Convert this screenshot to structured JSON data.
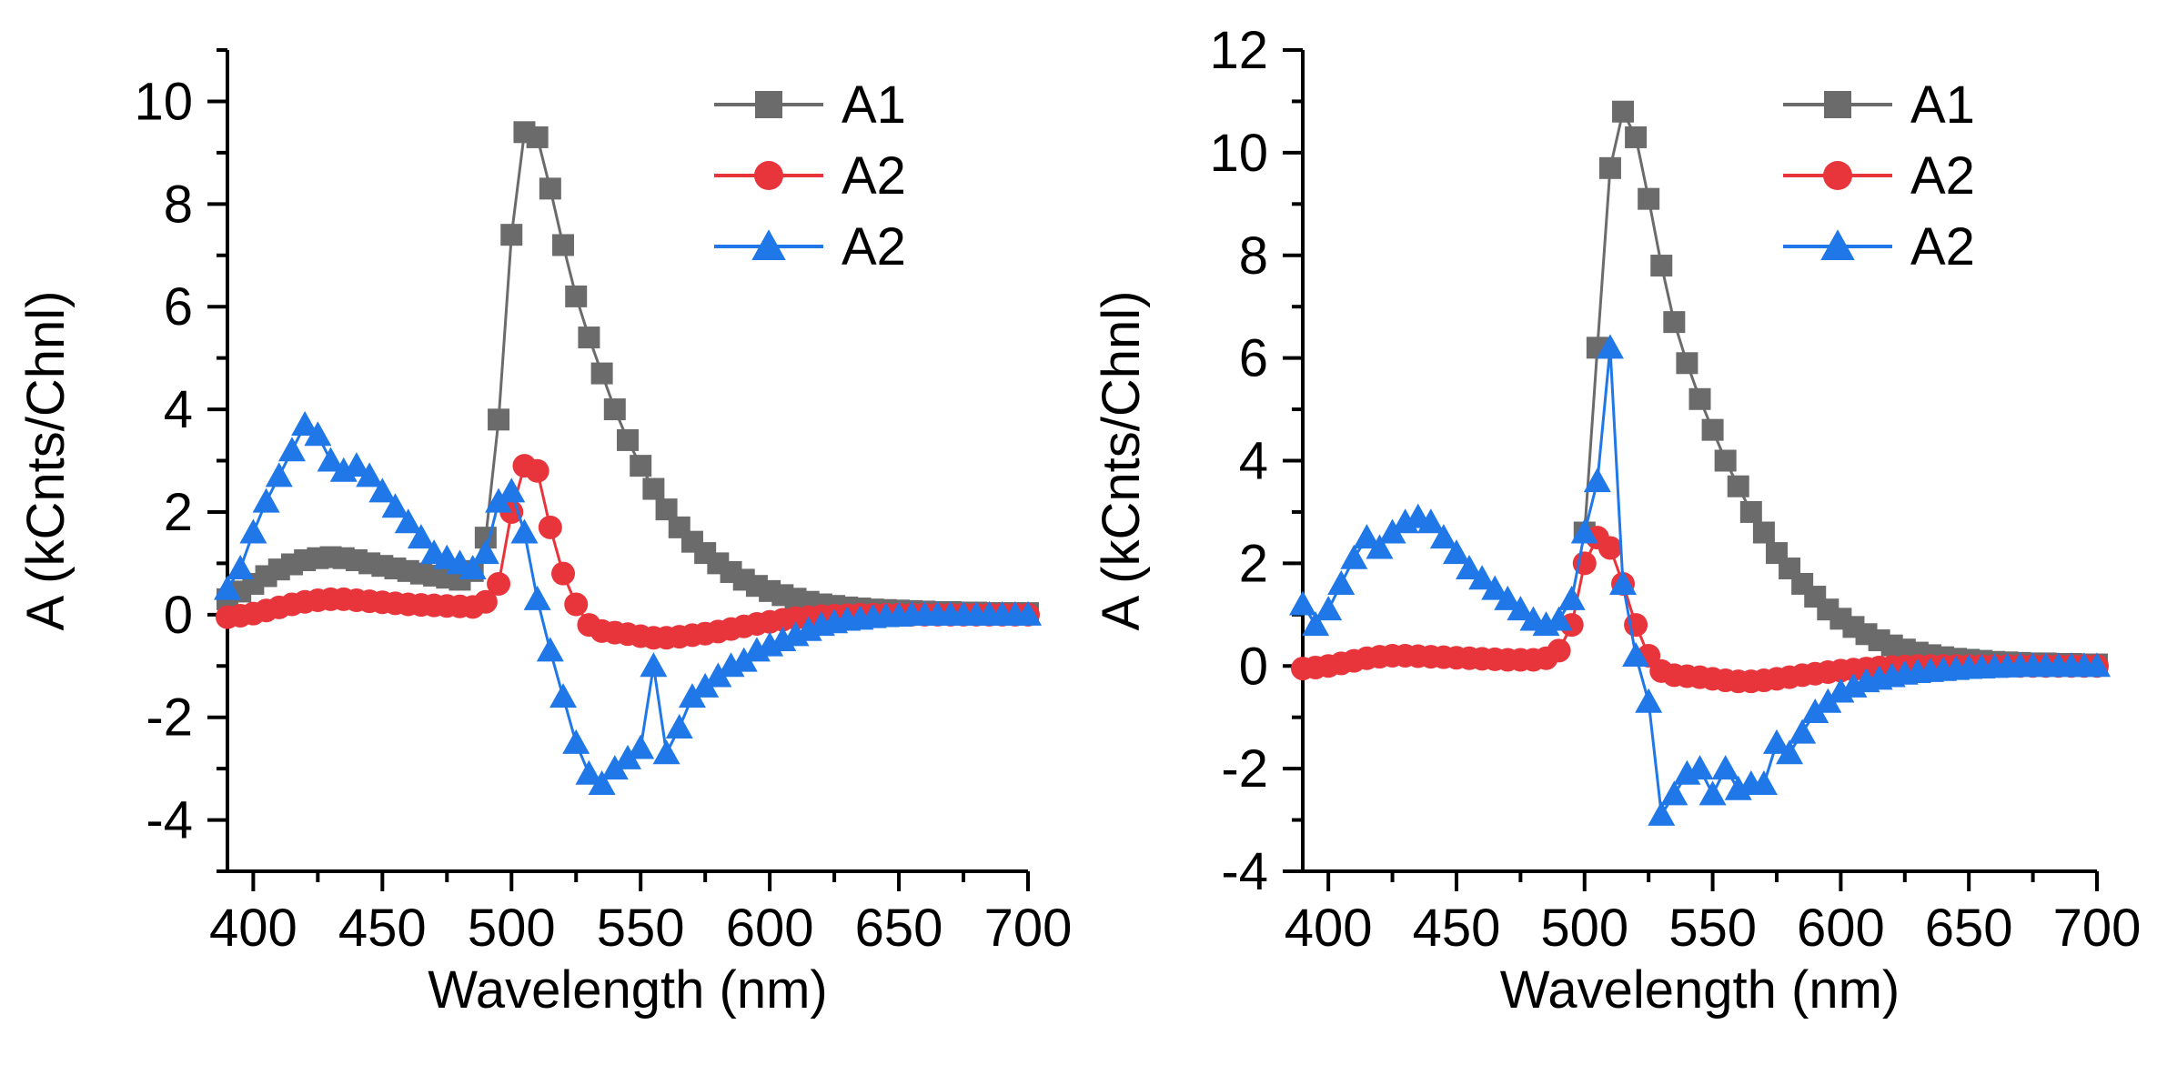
{
  "colors": {
    "A1": "#6b6b6b",
    "A2_red": "#e8343b",
    "A2_blue": "#1f77e8",
    "axis": "#000000"
  },
  "chart_data": [
    {
      "type": "line",
      "title": "",
      "xlabel": "Wavelength (nm)",
      "ylabel": "A (kCnts/Chnl)",
      "xlim": [
        390,
        700
      ],
      "ylim": [
        -5,
        11
      ],
      "xticks": [
        400,
        450,
        500,
        550,
        600,
        650,
        700
      ],
      "xtick_labels": [
        "400",
        "450",
        "500",
        "550",
        "600",
        "650",
        "700"
      ],
      "yticks": [
        -4,
        -2,
        0,
        2,
        4,
        6,
        8,
        10
      ],
      "ytick_labels": [
        "-4",
        "-2",
        "0",
        "2",
        "4",
        "6",
        "8",
        "10"
      ],
      "legend": "top-right",
      "series": [
        {
          "name": "A1",
          "marker": "square",
          "color": "#6b6b6b",
          "x": [
            390,
            395,
            400,
            405,
            410,
            415,
            420,
            425,
            430,
            435,
            440,
            445,
            450,
            455,
            460,
            465,
            470,
            475,
            480,
            485,
            490,
            495,
            500,
            505,
            510,
            515,
            520,
            525,
            530,
            535,
            540,
            545,
            550,
            555,
            560,
            565,
            570,
            575,
            580,
            585,
            590,
            595,
            600,
            605,
            610,
            615,
            620,
            625,
            630,
            635,
            640,
            645,
            650,
            655,
            660,
            665,
            670,
            675,
            680,
            685,
            690,
            695,
            700
          ],
          "y": [
            0.3,
            0.45,
            0.6,
            0.75,
            0.88,
            0.98,
            1.06,
            1.1,
            1.12,
            1.1,
            1.06,
            1.0,
            0.95,
            0.9,
            0.85,
            0.8,
            0.76,
            0.72,
            0.68,
            0.85,
            1.5,
            3.8,
            7.4,
            9.4,
            9.3,
            8.3,
            7.2,
            6.2,
            5.4,
            4.7,
            4.0,
            3.4,
            2.9,
            2.45,
            2.05,
            1.7,
            1.42,
            1.2,
            1.0,
            0.83,
            0.68,
            0.56,
            0.46,
            0.38,
            0.31,
            0.25,
            0.2,
            0.17,
            0.14,
            0.12,
            0.1,
            0.09,
            0.08,
            0.07,
            0.06,
            0.05,
            0.05,
            0.04,
            0.04,
            0.03,
            0.03,
            0.03,
            0.03
          ]
        },
        {
          "name": "A2",
          "marker": "circle",
          "color": "#e8343b",
          "x": [
            390,
            395,
            400,
            405,
            410,
            415,
            420,
            425,
            430,
            435,
            440,
            445,
            450,
            455,
            460,
            465,
            470,
            475,
            480,
            485,
            490,
            495,
            500,
            505,
            510,
            515,
            520,
            525,
            530,
            535,
            540,
            545,
            550,
            555,
            560,
            565,
            570,
            575,
            580,
            585,
            590,
            595,
            600,
            605,
            610,
            615,
            620,
            625,
            630,
            635,
            640,
            645,
            650,
            655,
            660,
            665,
            670,
            675,
            680,
            685,
            690,
            695,
            700
          ],
          "y": [
            -0.05,
            -0.02,
            0.02,
            0.08,
            0.14,
            0.2,
            0.25,
            0.28,
            0.3,
            0.3,
            0.28,
            0.26,
            0.24,
            0.22,
            0.2,
            0.19,
            0.18,
            0.17,
            0.16,
            0.15,
            0.25,
            0.6,
            2.0,
            2.9,
            2.8,
            1.7,
            0.8,
            0.2,
            -0.2,
            -0.32,
            -0.35,
            -0.38,
            -0.42,
            -0.45,
            -0.45,
            -0.43,
            -0.4,
            -0.37,
            -0.33,
            -0.28,
            -0.23,
            -0.18,
            -0.14,
            -0.1,
            -0.07,
            -0.05,
            -0.03,
            -0.02,
            -0.01,
            0.0,
            0.0,
            0.0,
            0.0,
            0.0,
            0.0,
            0.0,
            0.0,
            0.0,
            0.0,
            0.0,
            0.0,
            0.0,
            0.0
          ]
        },
        {
          "name": "A2",
          "marker": "triangle",
          "color": "#1f77e8",
          "x": [
            390,
            395,
            400,
            405,
            410,
            415,
            420,
            425,
            430,
            435,
            440,
            445,
            450,
            455,
            460,
            465,
            470,
            475,
            480,
            485,
            490,
            495,
            500,
            505,
            510,
            515,
            520,
            525,
            530,
            535,
            540,
            545,
            550,
            555,
            560,
            565,
            570,
            575,
            580,
            585,
            590,
            595,
            600,
            605,
            610,
            615,
            620,
            625,
            630,
            635,
            640,
            645,
            650,
            655,
            660,
            665,
            670,
            675,
            680,
            685,
            690,
            695,
            700
          ],
          "y": [
            0.5,
            0.9,
            1.6,
            2.2,
            2.7,
            3.2,
            3.7,
            3.5,
            3.0,
            2.8,
            2.9,
            2.7,
            2.4,
            2.1,
            1.8,
            1.5,
            1.2,
            1.1,
            1.0,
            0.9,
            1.2,
            2.2,
            2.4,
            1.6,
            0.3,
            -0.7,
            -1.6,
            -2.5,
            -3.1,
            -3.3,
            -3.0,
            -2.8,
            -2.6,
            -1.0,
            -2.7,
            -2.2,
            -1.6,
            -1.4,
            -1.2,
            -1.0,
            -0.9,
            -0.7,
            -0.6,
            -0.5,
            -0.4,
            -0.3,
            -0.2,
            -0.15,
            -0.1,
            -0.08,
            -0.05,
            -0.03,
            -0.02,
            0.0,
            0.0,
            0.0,
            0.0,
            0.0,
            0.0,
            0.0,
            0.0,
            0.0,
            0.0
          ]
        }
      ]
    },
    {
      "type": "line",
      "title": "",
      "xlabel": "Wavelength (nm)",
      "ylabel": "A (kCnts/Chnl)",
      "xlim": [
        390,
        700
      ],
      "ylim": [
        -4,
        12
      ],
      "xticks": [
        400,
        450,
        500,
        550,
        600,
        650,
        700
      ],
      "xtick_labels": [
        "400",
        "450",
        "500",
        "550",
        "600",
        "650",
        "700"
      ],
      "yticks": [
        -4,
        -2,
        0,
        2,
        4,
        6,
        8,
        10,
        12
      ],
      "ytick_labels": [
        "-4",
        "-2",
        "0",
        "2",
        "4",
        "6",
        "8",
        "10",
        "12"
      ],
      "legend": "top-right",
      "series": [
        {
          "name": "A1",
          "marker": "square",
          "color": "#6b6b6b",
          "x": [
            500,
            505,
            510,
            515,
            520,
            525,
            530,
            535,
            540,
            545,
            550,
            555,
            560,
            565,
            570,
            575,
            580,
            585,
            590,
            595,
            600,
            605,
            610,
            615,
            620,
            625,
            630,
            635,
            640,
            645,
            650,
            655,
            660,
            665,
            670,
            675,
            680,
            685,
            690,
            695,
            700
          ],
          "y": [
            2.6,
            6.2,
            9.7,
            10.8,
            10.3,
            9.1,
            7.8,
            6.7,
            5.9,
            5.2,
            4.6,
            4.0,
            3.5,
            3.0,
            2.6,
            2.2,
            1.9,
            1.6,
            1.35,
            1.1,
            0.92,
            0.76,
            0.62,
            0.5,
            0.4,
            0.32,
            0.26,
            0.21,
            0.17,
            0.14,
            0.12,
            0.1,
            0.08,
            0.07,
            0.06,
            0.05,
            0.05,
            0.04,
            0.04,
            0.03,
            0.03
          ]
        },
        {
          "name": "A2",
          "marker": "circle",
          "color": "#e8343b",
          "x": [
            390,
            395,
            400,
            405,
            410,
            415,
            420,
            425,
            430,
            435,
            440,
            445,
            450,
            455,
            460,
            465,
            470,
            475,
            480,
            485,
            490,
            495,
            500,
            505,
            510,
            515,
            520,
            525,
            530,
            535,
            540,
            545,
            550,
            555,
            560,
            565,
            570,
            575,
            580,
            585,
            590,
            595,
            600,
            605,
            610,
            615,
            620,
            625,
            630,
            635,
            640,
            645,
            650,
            655,
            660,
            665,
            670,
            675,
            680,
            685,
            690,
            695,
            700
          ],
          "y": [
            -0.05,
            -0.03,
            0.0,
            0.05,
            0.1,
            0.15,
            0.18,
            0.2,
            0.2,
            0.19,
            0.18,
            0.17,
            0.16,
            0.15,
            0.14,
            0.13,
            0.12,
            0.12,
            0.12,
            0.15,
            0.3,
            0.8,
            2.0,
            2.5,
            2.3,
            1.6,
            0.8,
            0.2,
            -0.1,
            -0.18,
            -0.2,
            -0.22,
            -0.25,
            -0.28,
            -0.3,
            -0.3,
            -0.28,
            -0.25,
            -0.22,
            -0.18,
            -0.15,
            -0.12,
            -0.09,
            -0.07,
            -0.05,
            -0.03,
            -0.02,
            -0.01,
            0.0,
            0.0,
            0.0,
            0.0,
            0.0,
            0.0,
            0.0,
            0.0,
            0.0,
            0.0,
            0.0,
            0.0,
            0.0,
            0.0,
            0.0
          ]
        },
        {
          "name": "A2",
          "marker": "triangle",
          "color": "#1f77e8",
          "x": [
            390,
            395,
            400,
            405,
            410,
            415,
            420,
            425,
            430,
            435,
            440,
            445,
            450,
            455,
            460,
            465,
            470,
            475,
            480,
            485,
            490,
            495,
            500,
            505,
            510,
            515,
            520,
            525,
            530,
            535,
            540,
            545,
            550,
            555,
            560,
            565,
            570,
            575,
            580,
            585,
            590,
            595,
            600,
            605,
            610,
            615,
            620,
            625,
            630,
            635,
            640,
            645,
            650,
            655,
            660,
            665,
            670,
            675,
            680,
            685,
            690,
            695,
            700
          ],
          "y": [
            1.2,
            0.8,
            1.1,
            1.6,
            2.1,
            2.5,
            2.3,
            2.6,
            2.8,
            2.9,
            2.8,
            2.5,
            2.2,
            1.9,
            1.7,
            1.5,
            1.3,
            1.1,
            0.9,
            0.8,
            0.9,
            1.3,
            2.6,
            3.6,
            6.2,
            1.6,
            0.2,
            -0.7,
            -2.9,
            -2.5,
            -2.1,
            -2.0,
            -2.5,
            -2.0,
            -2.4,
            -2.3,
            -2.3,
            -1.5,
            -1.7,
            -1.3,
            -0.9,
            -0.7,
            -0.5,
            -0.4,
            -0.3,
            -0.25,
            -0.2,
            -0.15,
            -0.12,
            -0.1,
            -0.08,
            -0.06,
            -0.04,
            -0.03,
            -0.02,
            -0.01,
            0.0,
            0.0,
            0.0,
            0.0,
            0.0,
            0.0,
            0.0
          ]
        }
      ]
    }
  ]
}
